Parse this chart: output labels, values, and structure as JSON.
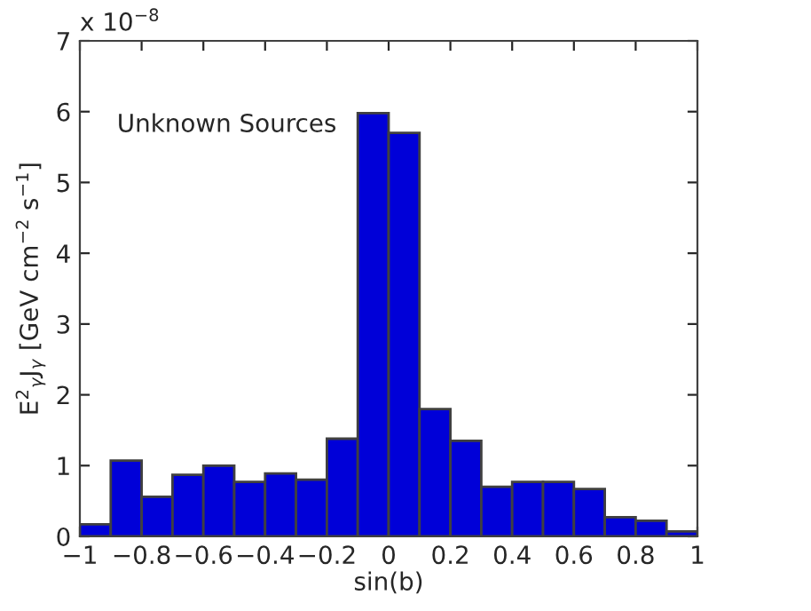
{
  "chart_data": {
    "type": "histogram",
    "xlabel": "sin(b)",
    "ylabel": "E$^{2}$$_{γ}$J$_{γ}$ [GeV cm$^{−2}$ s$^{−1}$]",
    "annotations": [
      "x 10$^{−8}$",
      "Unknown Sources"
    ],
    "bins": [
      -1,
      -0.9,
      -0.8,
      -0.7,
      -0.6,
      -0.5,
      -0.4,
      -0.3,
      -0.2,
      -0.1,
      0,
      0.1,
      0.2,
      0.3,
      0.4,
      0.5,
      0.6,
      0.7,
      0.8,
      0.9,
      1
    ],
    "values": [
      0.17,
      1.07,
      0.56,
      0.87,
      1.0,
      0.77,
      0.89,
      0.8,
      1.38,
      5.98,
      5.7,
      1.8,
      1.35,
      0.7,
      0.77,
      0.77,
      0.67,
      0.27,
      0.22,
      0.07
    ],
    "color": "#0000d8",
    "xlim": [
      -1,
      1
    ],
    "ylim": [
      0,
      7
    ],
    "xticks": [
      -1,
      -0.8,
      -0.6,
      -0.4,
      -0.2,
      0,
      0.2,
      0.4,
      0.6,
      0.8,
      1
    ],
    "yticks": [
      0,
      1,
      2,
      3,
      4,
      5,
      6,
      7
    ],
    "grid": false,
    "legend": false
  }
}
